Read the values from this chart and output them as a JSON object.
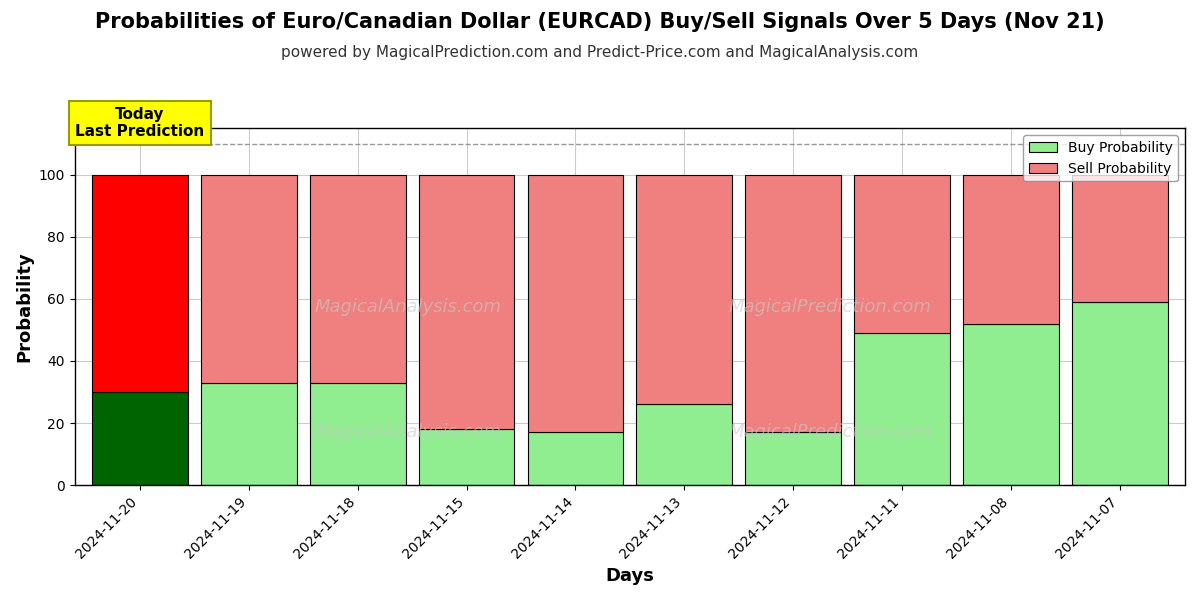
{
  "title": "Probabilities of Euro/Canadian Dollar (EURCAD) Buy/Sell Signals Over 5 Days (Nov 21)",
  "subtitle": "powered by MagicalPrediction.com and Predict-Price.com and MagicalAnalysis.com",
  "xlabel": "Days",
  "ylabel": "Probability",
  "watermark_left": "MagicalAnalysis.com",
  "watermark_right": "MagicalPrediction.com",
  "categories": [
    "2024-11-20",
    "2024-11-19",
    "2024-11-18",
    "2024-11-15",
    "2024-11-14",
    "2024-11-13",
    "2024-11-12",
    "2024-11-11",
    "2024-11-08",
    "2024-11-07"
  ],
  "buy_values": [
    30,
    33,
    33,
    18,
    17,
    26,
    17,
    49,
    52,
    59
  ],
  "sell_values": [
    70,
    67,
    67,
    82,
    83,
    74,
    83,
    51,
    48,
    41
  ],
  "today_buy_color": "#006400",
  "today_sell_color": "#ff0000",
  "buy_color": "#90ee90",
  "sell_color": "#f08080",
  "today_annotation_text": "Today\nLast Prediction",
  "today_annotation_bg": "#ffff00",
  "ylim": [
    0,
    115
  ],
  "dashed_line_y": 110,
  "legend_buy_label": "Buy Probability",
  "legend_sell_label": "Sell Probability",
  "title_fontsize": 15,
  "subtitle_fontsize": 11,
  "axis_label_fontsize": 13,
  "tick_fontsize": 10,
  "bar_edge_color": "#000000",
  "bar_linewidth": 0.8,
  "background_color": "#ffffff",
  "grid_color": "#cccccc",
  "bar_width": 0.88
}
